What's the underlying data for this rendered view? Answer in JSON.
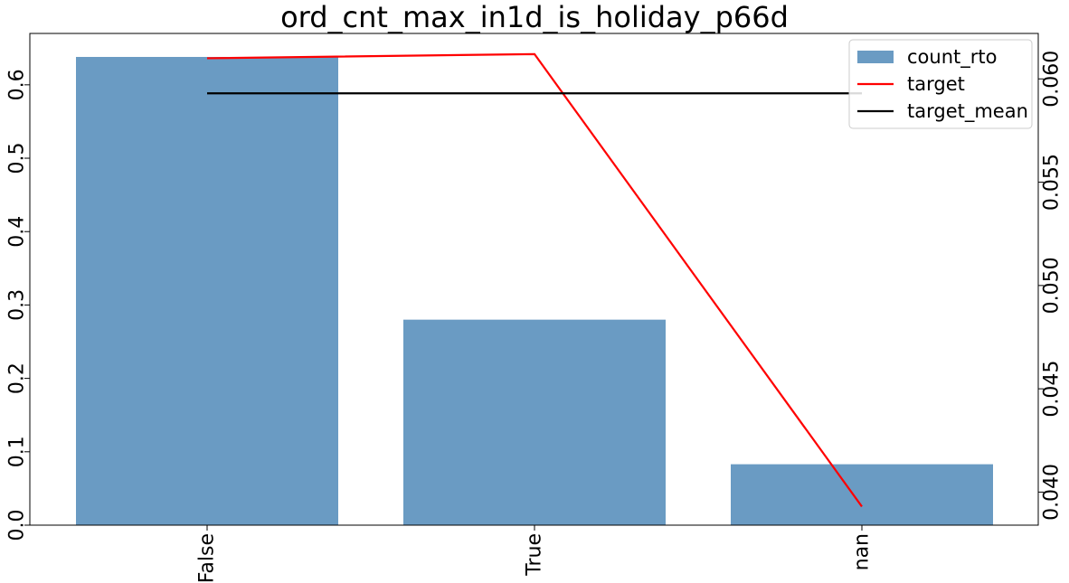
{
  "chart_data": {
    "type": "bar",
    "title": "ord_cnt_max_in1d_is_holiday_p66d",
    "categories": [
      "False",
      "True",
      "nan"
    ],
    "series": [
      {
        "name": "count_rto",
        "type": "bar",
        "axis": "left",
        "color": "#6a9bc3",
        "values": [
          0.638,
          0.28,
          0.083
        ]
      },
      {
        "name": "target",
        "type": "line",
        "axis": "right",
        "color": "#ff0000",
        "values": [
          0.061,
          0.0612,
          0.0393
        ]
      },
      {
        "name": "target_mean",
        "type": "line",
        "axis": "right",
        "color": "#000000",
        "values": [
          0.0593,
          0.0593,
          0.0593
        ]
      }
    ],
    "y_left": {
      "ylim": [
        0,
        0.67
      ],
      "ticks": [
        0.0,
        0.1,
        0.2,
        0.3,
        0.4,
        0.5,
        0.6
      ],
      "tick_labels": [
        "0.0",
        "0.1",
        "0.2",
        "0.3",
        "0.4",
        "0.5",
        "0.6"
      ]
    },
    "y_right": {
      "ylim": [
        0.0384,
        0.0622
      ],
      "ticks": [
        0.04,
        0.045,
        0.05,
        0.055,
        0.06
      ],
      "tick_labels": [
        "0.040",
        "0.045",
        "0.050",
        "0.055",
        "0.060"
      ]
    },
    "xlabel": "",
    "ylabel": "",
    "grid": false,
    "legend_position": "top-right"
  }
}
